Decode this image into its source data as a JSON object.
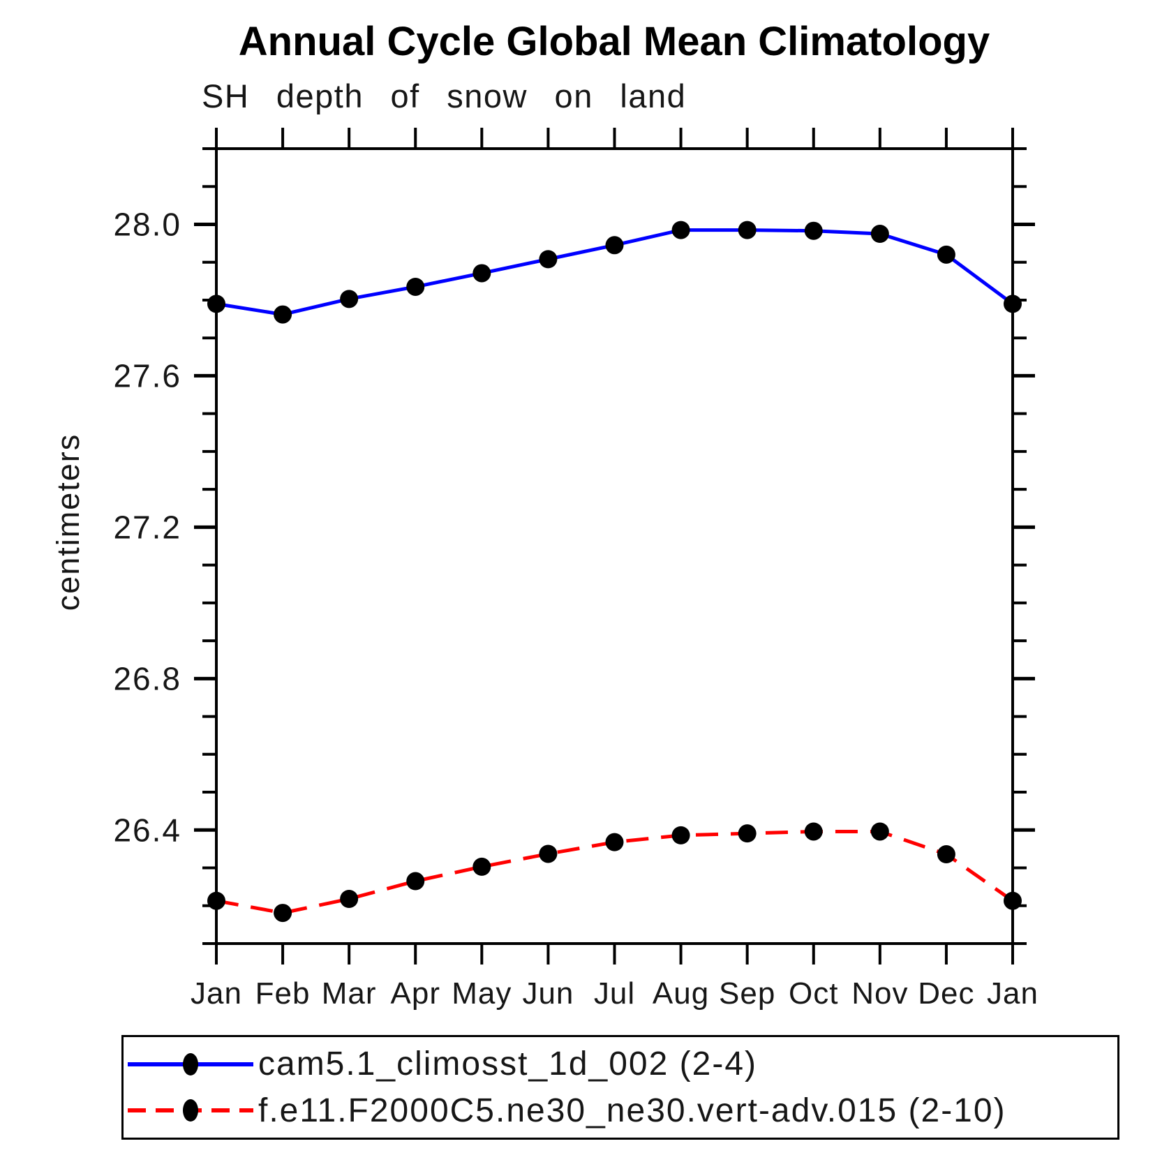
{
  "title": "Annual Cycle Global Mean Climatology",
  "subtitle": "SH depth of snow on land",
  "ylabel": "centimeters",
  "chart_data": {
    "type": "line",
    "categories": [
      "Jan",
      "Feb",
      "Mar",
      "Apr",
      "May",
      "Jun",
      "Jul",
      "Aug",
      "Sep",
      "Oct",
      "Nov",
      "Dec",
      "Jan"
    ],
    "xlabel": "",
    "ylabel": "centimeters",
    "ylim": [
      26.1,
      28.2
    ],
    "yticks_major": [
      26.4,
      26.8,
      27.2,
      27.6,
      28.0
    ],
    "ytick_minor_step": 0.1,
    "grid": false,
    "legend_position": "bottom-left-box",
    "marker_color": "#000000",
    "series": [
      {
        "name": "cam5.1_climosst_1d_002 (2-4)",
        "color": "#0000ff",
        "line_style": "solid",
        "marker": "filled-circle",
        "values": [
          27.79,
          27.762,
          27.803,
          27.835,
          27.871,
          27.908,
          27.945,
          27.985,
          27.985,
          27.983,
          27.975,
          27.92,
          27.79
        ]
      },
      {
        "name": "f.e11.F2000C5.ne30_ne30.vert-adv.015 (2-10)",
        "color": "#ff0000",
        "line_style": "dashed",
        "marker": "filled-circle",
        "values": [
          26.213,
          26.181,
          26.218,
          26.265,
          26.303,
          26.337,
          26.368,
          26.386,
          26.391,
          26.396,
          26.396,
          26.336,
          26.213
        ]
      }
    ]
  }
}
